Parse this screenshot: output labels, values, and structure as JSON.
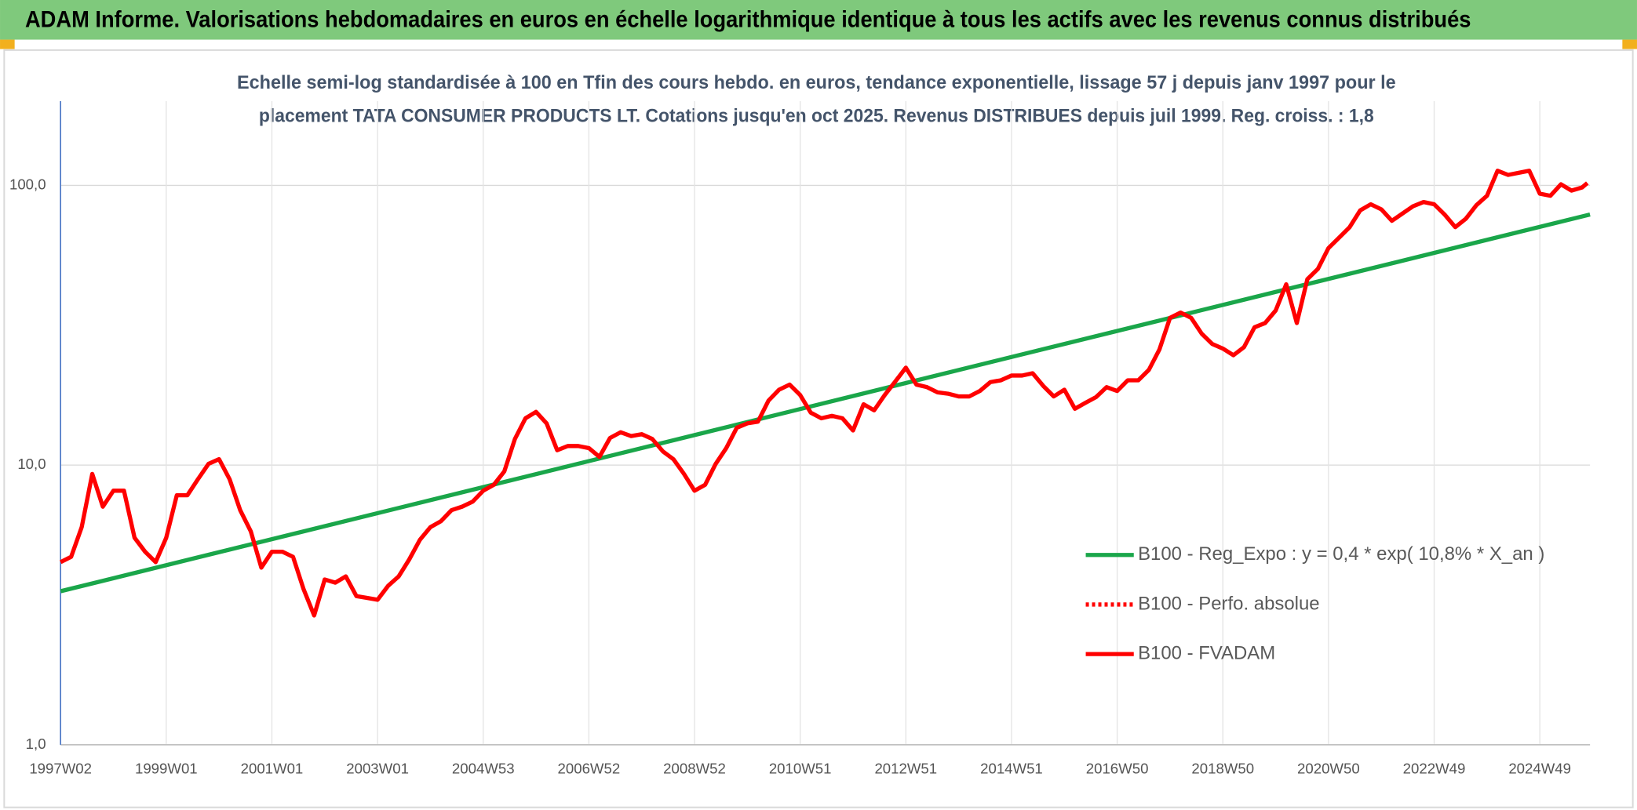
{
  "chart_data": {
    "type": "line",
    "title": "ADAM Informe. Valorisations hebdomadaires en euros en échelle logarithmique identique à tous les actifs avec les revenus connus distribués",
    "subtitle": [
      "Echelle semi-log standardisée à 100 en Tfin des cours hebdo. en euros, tendance exponentielle, lissage 57 j depuis janv 1997 pour le",
      "placement TATA CONSUMER PRODUCTS LT. Cotations jusqu'en oct 2025. Revenus DISTRIBUES depuis juil 1999. Reg. croiss. : 1,8"
    ],
    "log_y": true,
    "grid": true,
    "legend_position": "lower right",
    "ylim": [
      1,
      200
    ],
    "yticks": [
      {
        "value": 1,
        "label": "1,0"
      },
      {
        "value": 10,
        "label": "10,0"
      },
      {
        "value": 100,
        "label": "100,0"
      }
    ],
    "xlim": [
      1997,
      2025.95
    ],
    "xticks": [
      {
        "value": 1997,
        "label": "1997W02"
      },
      {
        "value": 1999,
        "label": "1999W01"
      },
      {
        "value": 2001,
        "label": "2001W01"
      },
      {
        "value": 2003,
        "label": "2003W01"
      },
      {
        "value": 2005,
        "label": "2004W53"
      },
      {
        "value": 2007,
        "label": "2006W52"
      },
      {
        "value": 2009,
        "label": "2008W52"
      },
      {
        "value": 2011,
        "label": "2010W51"
      },
      {
        "value": 2013,
        "label": "2012W51"
      },
      {
        "value": 2015,
        "label": "2014W51"
      },
      {
        "value": 2017,
        "label": "2016W50"
      },
      {
        "value": 2019,
        "label": "2018W50"
      },
      {
        "value": 2021,
        "label": "2020W50"
      },
      {
        "value": 2023,
        "label": "2022W49"
      },
      {
        "value": 2025,
        "label": "2024W49"
      }
    ],
    "series": [
      {
        "name": "B100 - Reg_Expo : y = 0,4 * exp( 10,8% * X_an )",
        "color": "#1aa64a",
        "line_style": "solid",
        "x": [
          1997,
          2025.95
        ],
        "values": [
          3.54,
          78.7
        ]
      },
      {
        "name": "B100 - FVADAM",
        "color": "#ff0000",
        "line_style": "solid",
        "x": [
          1997,
          1997.2,
          1997.4,
          1997.6,
          1997.8,
          1998,
          1998.2,
          1998.4,
          1998.6,
          1998.8,
          1999,
          1999.2,
          1999.4,
          1999.6,
          1999.8,
          2000,
          2000.2,
          2000.4,
          2000.6,
          2000.8,
          2001,
          2001.2,
          2001.4,
          2001.6,
          2001.8,
          2002,
          2002.2,
          2002.4,
          2002.6,
          2002.8,
          2003,
          2003.2,
          2003.4,
          2003.6,
          2003.8,
          2004,
          2004.2,
          2004.4,
          2004.6,
          2004.8,
          2005,
          2005.2,
          2005.4,
          2005.6,
          2005.8,
          2006,
          2006.2,
          2006.4,
          2006.6,
          2006.8,
          2007,
          2007.2,
          2007.4,
          2007.6,
          2007.8,
          2008,
          2008.2,
          2008.4,
          2008.6,
          2008.8,
          2009,
          2009.2,
          2009.4,
          2009.6,
          2009.8,
          2010,
          2010.2,
          2010.4,
          2010.6,
          2010.8,
          2011,
          2011.2,
          2011.4,
          2011.6,
          2011.8,
          2012,
          2012.2,
          2012.4,
          2012.6,
          2012.8,
          2013,
          2013.2,
          2013.4,
          2013.6,
          2013.8,
          2014,
          2014.2,
          2014.4,
          2014.6,
          2014.8,
          2015,
          2015.2,
          2015.4,
          2015.6,
          2015.8,
          2016,
          2016.2,
          2016.4,
          2016.6,
          2016.8,
          2017,
          2017.2,
          2017.4,
          2017.6,
          2017.8,
          2018,
          2018.2,
          2018.4,
          2018.6,
          2018.8,
          2019,
          2019.2,
          2019.4,
          2019.6,
          2019.8,
          2020,
          2020.2,
          2020.4,
          2020.6,
          2020.8,
          2021,
          2021.2,
          2021.4,
          2021.6,
          2021.8,
          2022,
          2022.2,
          2022.4,
          2022.6,
          2022.8,
          2023,
          2023.2,
          2023.4,
          2023.6,
          2023.8,
          2024,
          2024.2,
          2024.4,
          2024.6,
          2024.8,
          2025,
          2025.2,
          2025.4,
          2025.6,
          2025.8,
          2025.9
        ],
        "values": [
          4.5,
          4.7,
          6.0,
          9.3,
          7.1,
          8.1,
          8.1,
          5.5,
          4.9,
          4.5,
          5.5,
          7.8,
          7.8,
          8.9,
          10.1,
          10.5,
          8.9,
          6.9,
          5.8,
          4.3,
          4.9,
          4.9,
          4.7,
          3.6,
          2.9,
          3.9,
          3.8,
          4.0,
          3.4,
          3.35,
          3.3,
          3.7,
          4.0,
          4.6,
          5.4,
          6.0,
          6.3,
          6.9,
          7.1,
          7.4,
          8.1,
          8.5,
          9.5,
          12.4,
          14.7,
          15.5,
          14.1,
          11.3,
          11.7,
          11.7,
          11.5,
          10.7,
          12.5,
          13.1,
          12.7,
          12.9,
          12.4,
          11.2,
          10.5,
          9.3,
          8.1,
          8.5,
          10.1,
          11.5,
          13.6,
          14.1,
          14.3,
          17.0,
          18.6,
          19.4,
          17.8,
          15.4,
          14.7,
          15.0,
          14.7,
          13.3,
          16.5,
          15.7,
          17.8,
          19.9,
          22.3,
          19.4,
          19.0,
          18.2,
          18.0,
          17.6,
          17.6,
          18.4,
          19.8,
          20.1,
          20.9,
          20.9,
          21.3,
          19.2,
          17.6,
          18.6,
          15.9,
          16.7,
          17.5,
          19.0,
          18.4,
          20.1,
          20.1,
          21.9,
          25.9,
          33.6,
          35.1,
          33.6,
          29.5,
          27.1,
          26.1,
          24.7,
          26.4,
          31.1,
          32.2,
          35.7,
          44.3,
          32.2,
          46.2,
          50.3,
          59.7,
          65.0,
          70.9,
          81.4,
          85.6,
          82.1,
          74.7,
          79.3,
          84.2,
          87.2,
          85.6,
          78.6,
          70.9,
          76.0,
          85.0,
          91.8,
          112.8,
          109,
          110.9,
          112.8,
          93.4,
          91.8,
          100.9,
          95.8,
          98.3,
          102
        ]
      }
    ],
    "legend_entries": [
      {
        "name": "B100 - Reg_Expo : y = 0,4 * exp( 10,8% * X_an )",
        "color": "#1aa64a",
        "line_style": "solid"
      },
      {
        "name": "B100 - Perfo. absolue",
        "color": "#ff0000",
        "line_style": "dotted"
      },
      {
        "name": "B100 - FVADAM",
        "color": "#ff0000",
        "line_style": "solid"
      }
    ]
  }
}
